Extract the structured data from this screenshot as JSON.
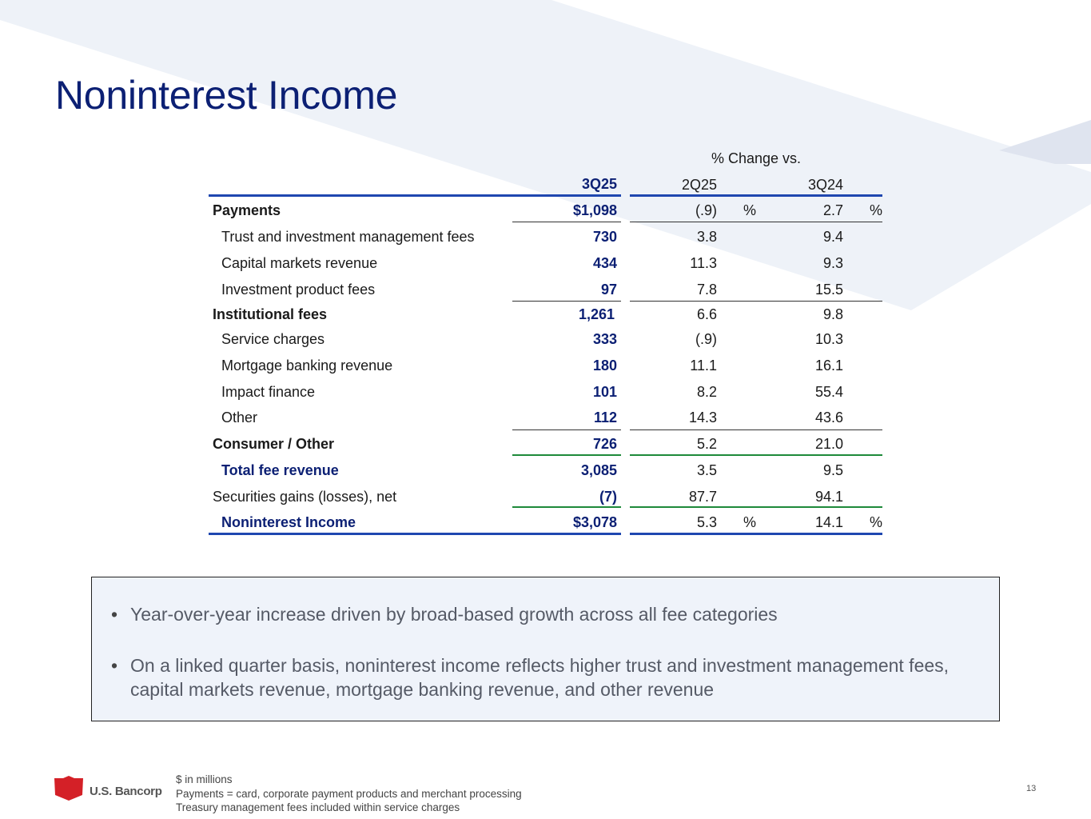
{
  "title": "Noninterest Income",
  "colors": {
    "navy": "#0c2074",
    "accent_blue": "#1f47b0",
    "accent_green": "#1e8a3a",
    "callout_bg": "#eff3fa"
  },
  "table": {
    "group_header": "% Change vs.",
    "columns": [
      "3Q25",
      "2Q25",
      "3Q24"
    ],
    "pct_symbol": "%",
    "rows": [
      {
        "label": "Payments",
        "v": "$1,098",
        "c1": "(.9)",
        "c2": "2.7"
      },
      {
        "label": "Trust and investment management fees",
        "v": "730",
        "c1": "3.8",
        "c2": "9.4"
      },
      {
        "label": "Capital markets revenue",
        "v": "434",
        "c1": "11.3",
        "c2": "9.3"
      },
      {
        "label": "Investment product fees",
        "v": "97",
        "c1": "7.8",
        "c2": "15.5"
      },
      {
        "label": "Institutional fees",
        "v": "1,261",
        "c1": "6.6",
        "c2": "9.8"
      },
      {
        "label": "Service charges",
        "v": "333",
        "c1": "(.9)",
        "c2": "10.3"
      },
      {
        "label": "Mortgage banking revenue",
        "v": "180",
        "c1": "11.1",
        "c2": "16.1"
      },
      {
        "label": "Impact finance",
        "v": "101",
        "c1": "8.2",
        "c2": "55.4"
      },
      {
        "label": "Other",
        "v": "112",
        "c1": "14.3",
        "c2": "43.6"
      },
      {
        "label": "Consumer / Other",
        "v": "726",
        "c1": "5.2",
        "c2": "21.0"
      },
      {
        "label": "Total fee revenue",
        "v": "3,085",
        "c1": "3.5",
        "c2": "9.5"
      },
      {
        "label": "Securities gains (losses), net",
        "v": "(7)",
        "c1": "87.7",
        "c2": "94.1"
      },
      {
        "label": "Noninterest Income",
        "v": "$3,078",
        "c1": "5.3",
        "c2": "14.1"
      }
    ]
  },
  "bullets": [
    "Year-over-year increase driven by broad-based growth across all fee categories",
    "On a linked quarter basis, noninterest income reflects higher trust and investment management fees, capital markets revenue, mortgage banking revenue, and other revenue"
  ],
  "bullet_glyph": "•",
  "logo_text": "U.S. Bancorp",
  "footnotes": [
    "$ in millions",
    "Payments = card, corporate payment products and merchant processing",
    "Treasury management fees included within service charges"
  ],
  "page_number": "13"
}
